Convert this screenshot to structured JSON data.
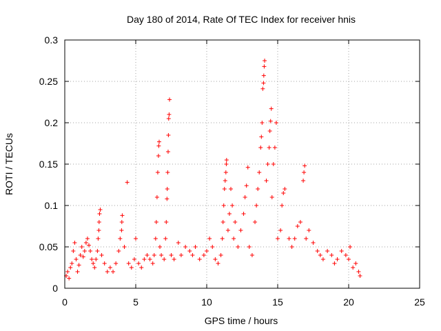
{
  "colors": {
    "series": "#ff0000",
    "grid": "#a0a0a0",
    "axis": "#000000",
    "background": "#ffffff"
  },
  "chart_data": {
    "type": "scatter",
    "title": "Day 180 of 2014, Rate Of TEC Index for receiver hnis",
    "xlabel": "GPS time / hours",
    "ylabel": "ROTI / TECUs",
    "xlim": [
      0,
      25
    ],
    "ylim": [
      0,
      0.3
    ],
    "xticks": [
      0,
      5,
      10,
      15,
      20,
      25
    ],
    "xtick_labels": [
      "0",
      "5",
      "10",
      "15",
      "20",
      "25"
    ],
    "yticks": [
      0,
      0.05,
      0.1,
      0.15,
      0.2,
      0.25,
      0.3
    ],
    "ytick_labels": [
      "0",
      "0.05",
      "0.1",
      "0.15",
      "0.2",
      "0.25",
      "0.3"
    ],
    "grid": true,
    "marker": "plus",
    "series": [
      {
        "name": "ROTI",
        "points": [
          [
            0.1,
            0.015
          ],
          [
            0.2,
            0.02
          ],
          [
            0.3,
            0.012
          ],
          [
            0.4,
            0.025
          ],
          [
            0.5,
            0.03
          ],
          [
            0.6,
            0.045
          ],
          [
            0.7,
            0.055
          ],
          [
            0.8,
            0.035
          ],
          [
            0.9,
            0.02
          ],
          [
            1.0,
            0.028
          ],
          [
            1.1,
            0.04
          ],
          [
            1.2,
            0.05
          ],
          [
            1.3,
            0.038
          ],
          [
            1.4,
            0.045
          ],
          [
            1.5,
            0.055
          ],
          [
            1.6,
            0.06
          ],
          [
            1.7,
            0.052
          ],
          [
            1.8,
            0.045
          ],
          [
            1.9,
            0.035
          ],
          [
            2.0,
            0.03
          ],
          [
            2.1,
            0.025
          ],
          [
            2.2,
            0.035
          ],
          [
            2.3,
            0.045
          ],
          [
            2.35,
            0.06
          ],
          [
            2.4,
            0.07
          ],
          [
            2.42,
            0.08
          ],
          [
            2.45,
            0.09
          ],
          [
            2.5,
            0.095
          ],
          [
            2.6,
            0.04
          ],
          [
            2.8,
            0.03
          ],
          [
            3.0,
            0.02
          ],
          [
            3.2,
            0.025
          ],
          [
            3.4,
            0.02
          ],
          [
            3.6,
            0.03
          ],
          [
            3.8,
            0.045
          ],
          [
            3.9,
            0.06
          ],
          [
            4.0,
            0.07
          ],
          [
            4.02,
            0.08
          ],
          [
            4.05,
            0.088
          ],
          [
            4.2,
            0.05
          ],
          [
            4.4,
            0.128
          ],
          [
            4.5,
            0.03
          ],
          [
            4.7,
            0.025
          ],
          [
            4.9,
            0.035
          ],
          [
            5.0,
            0.06
          ],
          [
            5.2,
            0.03
          ],
          [
            5.4,
            0.025
          ],
          [
            5.6,
            0.035
          ],
          [
            5.8,
            0.04
          ],
          [
            6.0,
            0.035
          ],
          [
            6.2,
            0.03
          ],
          [
            6.3,
            0.04
          ],
          [
            6.4,
            0.06
          ],
          [
            6.45,
            0.08
          ],
          [
            6.5,
            0.11
          ],
          [
            6.55,
            0.14
          ],
          [
            6.6,
            0.16
          ],
          [
            6.62,
            0.172
          ],
          [
            6.65,
            0.177
          ],
          [
            6.7,
            0.05
          ],
          [
            6.8,
            0.04
          ],
          [
            7.0,
            0.035
          ],
          [
            7.1,
            0.06
          ],
          [
            7.15,
            0.08
          ],
          [
            7.2,
            0.108
          ],
          [
            7.22,
            0.12
          ],
          [
            7.25,
            0.14
          ],
          [
            7.28,
            0.165
          ],
          [
            7.3,
            0.185
          ],
          [
            7.32,
            0.205
          ],
          [
            7.35,
            0.21
          ],
          [
            7.38,
            0.228
          ],
          [
            7.5,
            0.04
          ],
          [
            7.7,
            0.035
          ],
          [
            8.0,
            0.055
          ],
          [
            8.2,
            0.04
          ],
          [
            8.5,
            0.05
          ],
          [
            8.8,
            0.045
          ],
          [
            9.0,
            0.04
          ],
          [
            9.2,
            0.05
          ],
          [
            9.5,
            0.035
          ],
          [
            9.8,
            0.04
          ],
          [
            10.0,
            0.045
          ],
          [
            10.2,
            0.06
          ],
          [
            10.4,
            0.05
          ],
          [
            10.6,
            0.035
          ],
          [
            10.8,
            0.03
          ],
          [
            11.0,
            0.04
          ],
          [
            11.1,
            0.06
          ],
          [
            11.15,
            0.08
          ],
          [
            11.2,
            0.1
          ],
          [
            11.25,
            0.12
          ],
          [
            11.3,
            0.13
          ],
          [
            11.35,
            0.14
          ],
          [
            11.38,
            0.15
          ],
          [
            11.4,
            0.155
          ],
          [
            11.5,
            0.07
          ],
          [
            11.6,
            0.09
          ],
          [
            11.7,
            0.12
          ],
          [
            11.8,
            0.1
          ],
          [
            11.9,
            0.06
          ],
          [
            12.0,
            0.08
          ],
          [
            12.2,
            0.05
          ],
          [
            12.4,
            0.07
          ],
          [
            12.6,
            0.09
          ],
          [
            12.7,
            0.11
          ],
          [
            12.8,
            0.124
          ],
          [
            12.9,
            0.146
          ],
          [
            13.0,
            0.05
          ],
          [
            13.2,
            0.04
          ],
          [
            13.4,
            0.08
          ],
          [
            13.5,
            0.1
          ],
          [
            13.6,
            0.12
          ],
          [
            13.7,
            0.14
          ],
          [
            13.8,
            0.17
          ],
          [
            13.85,
            0.183
          ],
          [
            13.9,
            0.2
          ],
          [
            13.95,
            0.241
          ],
          [
            14.0,
            0.248
          ],
          [
            14.02,
            0.257
          ],
          [
            14.05,
            0.268
          ],
          [
            14.08,
            0.275
          ],
          [
            14.2,
            0.13
          ],
          [
            14.3,
            0.15
          ],
          [
            14.4,
            0.17
          ],
          [
            14.45,
            0.19
          ],
          [
            14.5,
            0.202
          ],
          [
            14.55,
            0.217
          ],
          [
            14.6,
            0.11
          ],
          [
            14.7,
            0.15
          ],
          [
            14.8,
            0.17
          ],
          [
            14.9,
            0.2
          ],
          [
            15.0,
            0.06
          ],
          [
            15.2,
            0.07
          ],
          [
            15.3,
            0.1
          ],
          [
            15.4,
            0.115
          ],
          [
            15.5,
            0.12
          ],
          [
            15.8,
            0.06
          ],
          [
            16.0,
            0.05
          ],
          [
            16.2,
            0.06
          ],
          [
            16.4,
            0.075
          ],
          [
            16.6,
            0.08
          ],
          [
            16.8,
            0.13
          ],
          [
            16.85,
            0.14
          ],
          [
            16.9,
            0.148
          ],
          [
            17.0,
            0.06
          ],
          [
            17.2,
            0.07
          ],
          [
            17.5,
            0.055
          ],
          [
            17.8,
            0.045
          ],
          [
            18.0,
            0.04
          ],
          [
            18.2,
            0.035
          ],
          [
            18.5,
            0.045
          ],
          [
            18.8,
            0.04
          ],
          [
            19.0,
            0.03
          ],
          [
            19.2,
            0.035
          ],
          [
            19.5,
            0.045
          ],
          [
            19.8,
            0.04
          ],
          [
            20.0,
            0.035
          ],
          [
            20.1,
            0.05
          ],
          [
            20.3,
            0.025
          ],
          [
            20.5,
            0.03
          ],
          [
            20.7,
            0.02
          ],
          [
            20.8,
            0.015
          ]
        ]
      }
    ]
  }
}
